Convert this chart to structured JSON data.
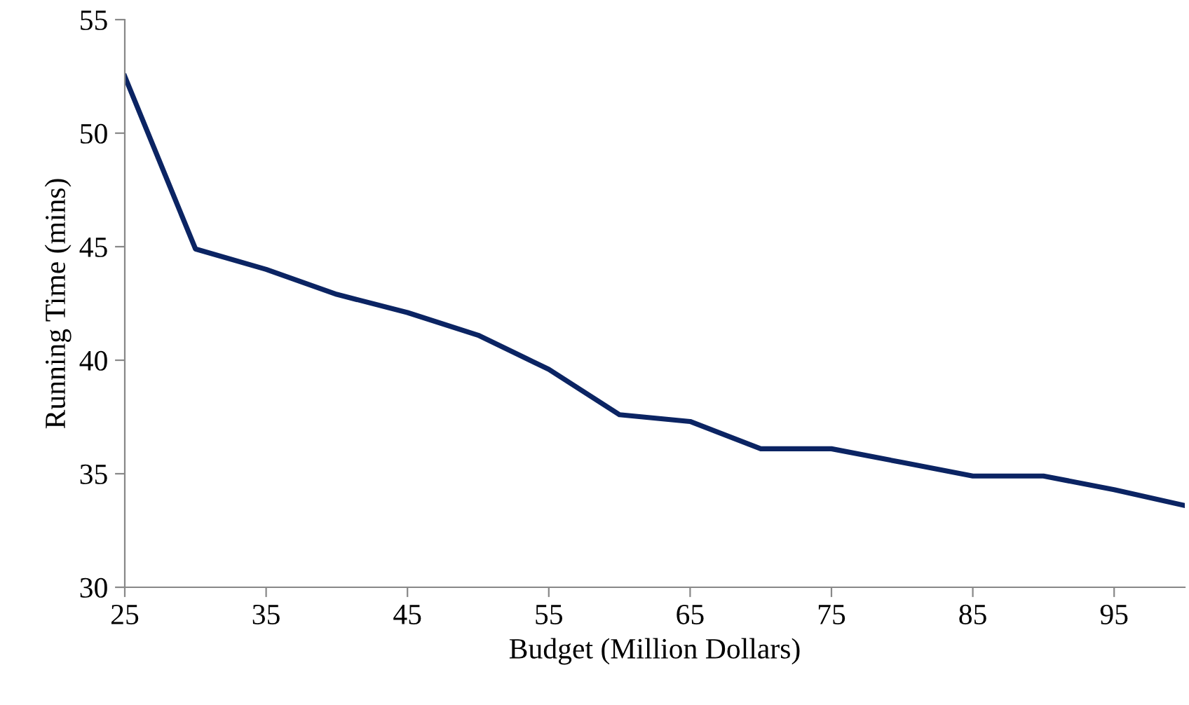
{
  "chart_data": {
    "type": "line",
    "xlabel": "Budget (Million Dollars)",
    "ylabel": "Running Time (mins)",
    "x": [
      25,
      30,
      35,
      40,
      45,
      50,
      55,
      60,
      65,
      70,
      75,
      80,
      85,
      90,
      95,
      100
    ],
    "series": [
      {
        "color": "#0b2463",
        "values": [
          52.5,
          44.9,
          44.0,
          42.9,
          42.1,
          41.1,
          39.6,
          37.6,
          37.3,
          36.1,
          36.1,
          35.5,
          34.9,
          34.9,
          34.3,
          33.6
        ]
      }
    ],
    "xlim": [
      25,
      100
    ],
    "xticks": [
      25,
      35,
      45,
      55,
      65,
      75,
      85,
      95
    ],
    "ylim": [
      30,
      55
    ],
    "yticks": [
      30,
      35,
      40,
      45,
      50,
      55
    ],
    "grid": false,
    "marker": "none",
    "line_style": "solid"
  }
}
